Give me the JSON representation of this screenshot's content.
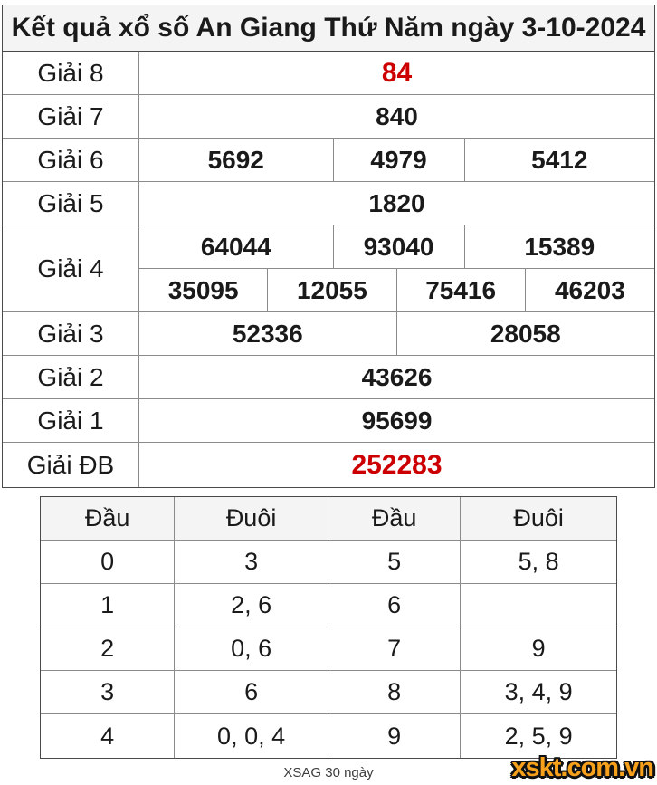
{
  "title": "Kết quả xổ số An Giang Thứ Năm ngày 3-10-2024",
  "colors": {
    "accent_red": "#cc0000",
    "header_bg": "#f4f4f4",
    "border_gray": "#8a8a8a",
    "logo_orange": "#f7a01b",
    "logo_outline": "#111111"
  },
  "results": {
    "prize8": {
      "label": "Giải 8",
      "value": "84"
    },
    "prize7": {
      "label": "Giải 7",
      "value": "840"
    },
    "prize6": {
      "label": "Giải 6",
      "values": [
        "5692",
        "4979",
        "5412"
      ]
    },
    "prize5": {
      "label": "Giải 5",
      "value": "1820"
    },
    "prize4": {
      "label": "Giải 4",
      "row1": [
        "64044",
        "93040",
        "15389"
      ],
      "row2": [
        "35095",
        "12055",
        "75416",
        "46203"
      ]
    },
    "prize3": {
      "label": "Giải 3",
      "values": [
        "52336",
        "28058"
      ]
    },
    "prize2": {
      "label": "Giải 2",
      "value": "43626"
    },
    "prize1": {
      "label": "Giải 1",
      "value": "95699"
    },
    "prizeDB": {
      "label": "Giải ĐB",
      "value": "252283"
    }
  },
  "head_tail": {
    "headers": [
      "Đầu",
      "Đuôi",
      "Đầu",
      "Đuôi"
    ],
    "rows": [
      [
        "0",
        "3",
        "5",
        "5, 8"
      ],
      [
        "1",
        "2, 6",
        "6",
        ""
      ],
      [
        "2",
        "0, 6",
        "7",
        "9"
      ],
      [
        "3",
        "6",
        "8",
        "3, 4, 9"
      ],
      [
        "4",
        "0, 0, 4",
        "9",
        "2, 5, 9"
      ]
    ]
  },
  "footer": {
    "stats_link": "XSAG 30 ngày",
    "logo": "xskt.com.vn"
  }
}
